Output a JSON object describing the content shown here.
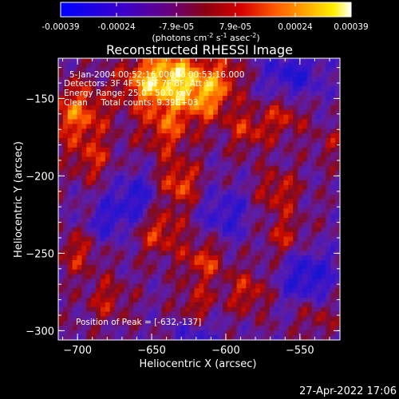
{
  "colorbar": {
    "tick_labels": [
      "-0.00039",
      "-0.00024",
      "-7.9e-05",
      "7.9e-05",
      "0.00024",
      "0.00039"
    ],
    "units_prefix": "(photons cm",
    "units_exp1": "-2",
    "units_mid": " s",
    "units_exp2": "-1",
    "units_mid2": " asec",
    "units_exp3": "-2",
    "units_suffix": ")",
    "range": [
      -0.00039,
      0.00039
    ],
    "colormap": "blue-purple-red-yellow-white (IDL color table 3-like)"
  },
  "chart_data": {
    "type": "heatmap",
    "title": "Reconstructed RHESSI Image",
    "xlabel": "Heliocentric X (arcsec)",
    "ylabel": "Heliocentric Y (arcsec)",
    "xlim": [
      -713,
      -523
    ],
    "ylim": [
      -306,
      -124
    ],
    "x_ticks": [
      -700,
      -650,
      -600,
      -550
    ],
    "x_tick_labels": [
      "−700",
      "−650",
      "−600",
      "−550"
    ],
    "y_ticks": [
      -150,
      -200,
      -250,
      -300
    ],
    "y_tick_labels": [
      "−150",
      "−200",
      "−250",
      "−300"
    ],
    "annotations": [
      "5-Jan-2004 00:52:16.000 to 00:53:16.000",
      "Detectors: 3F 4F 5F 6F 7F 8F, Att 1",
      "Energy Range: 25.0 - 50.0 keV",
      "Clean     Total counts: 9.39E+03"
    ],
    "peak_label": "Position of Peak = [-632,-137]",
    "peak": [
      -632,
      -137
    ],
    "grid": false
  },
  "footer": {
    "timestamp": "27-Apr-2022 17:06"
  }
}
